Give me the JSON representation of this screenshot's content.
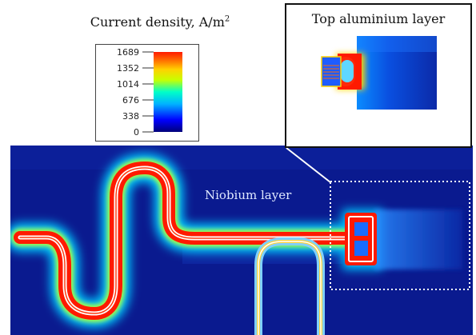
{
  "legend": {
    "title_text": "Current density, A/m",
    "title_exponent": "2",
    "ticks": [
      "1689",
      "1352",
      "1014",
      "676",
      "338",
      "0"
    ]
  },
  "inset": {
    "title": "Top aluminium layer"
  },
  "main": {
    "label": "Niobium layer"
  },
  "colors": {
    "background": "#0a1a8f",
    "colormap": [
      "#00007a",
      "#0000ff",
      "#00b4ff",
      "#00ffc8",
      "#c8ff00",
      "#ffd200",
      "#ff6a00",
      "#ff1a00"
    ],
    "border": "#111111"
  }
}
